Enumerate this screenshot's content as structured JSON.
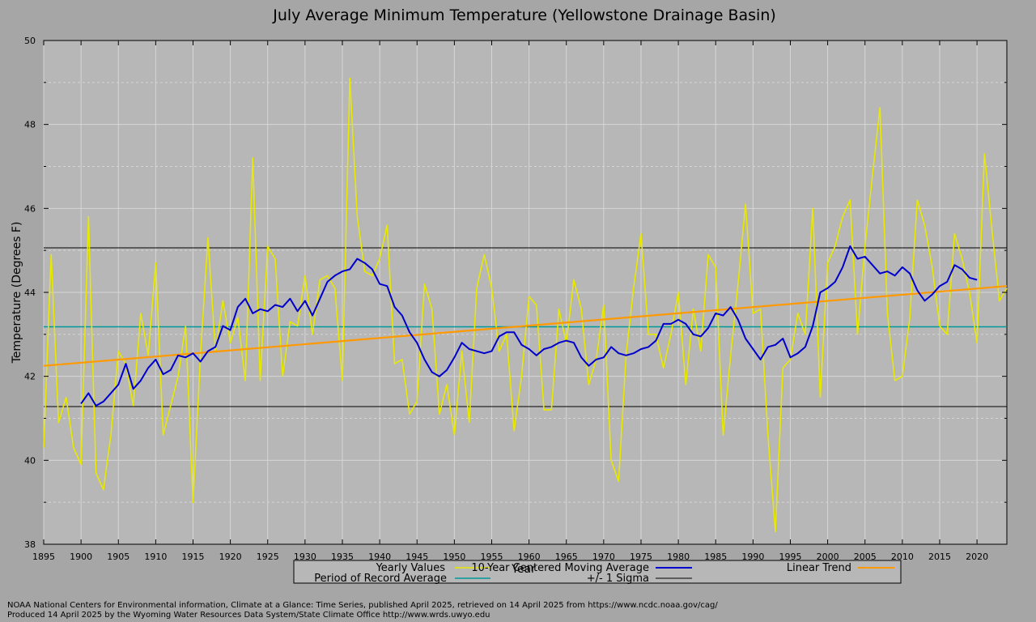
{
  "chart_data": {
    "type": "line",
    "title": "July Average Minimum Temperature (Yellowstone Drainage Basin)",
    "xlabel": "Year",
    "ylabel": "Temperature (Degrees F)",
    "xlim": [
      1895,
      2024
    ],
    "ylim": [
      38,
      50
    ],
    "xticks": [
      1895,
      1900,
      1905,
      1910,
      1915,
      1920,
      1925,
      1930,
      1935,
      1940,
      1945,
      1950,
      1955,
      1960,
      1965,
      1970,
      1975,
      1980,
      1985,
      1990,
      1995,
      2000,
      2005,
      2010,
      2015,
      2020
    ],
    "yticks": [
      38,
      40,
      42,
      44,
      46,
      48,
      50
    ],
    "grid": true,
    "legend_position": "bottom",
    "series": [
      {
        "name": "Yearly Values",
        "color": "#e8e800",
        "x": [
          1895,
          1896,
          1897,
          1898,
          1899,
          1900,
          1901,
          1902,
          1903,
          1904,
          1905,
          1906,
          1907,
          1908,
          1909,
          1910,
          1911,
          1912,
          1913,
          1914,
          1915,
          1916,
          1917,
          1918,
          1919,
          1920,
          1921,
          1922,
          1923,
          1924,
          1925,
          1926,
          1927,
          1928,
          1929,
          1930,
          1931,
          1932,
          1933,
          1934,
          1935,
          1936,
          1937,
          1938,
          1939,
          1940,
          1941,
          1942,
          1943,
          1944,
          1945,
          1946,
          1947,
          1948,
          1949,
          1950,
          1951,
          1952,
          1953,
          1954,
          1955,
          1956,
          1957,
          1958,
          1959,
          1960,
          1961,
          1962,
          1963,
          1964,
          1965,
          1966,
          1967,
          1968,
          1969,
          1970,
          1971,
          1972,
          1973,
          1974,
          1975,
          1976,
          1977,
          1978,
          1979,
          1980,
          1981,
          1982,
          1983,
          1984,
          1985,
          1986,
          1987,
          1988,
          1989,
          1990,
          1991,
          1992,
          1993,
          1994,
          1995,
          1996,
          1997,
          1998,
          1999,
          2000,
          2001,
          2002,
          2003,
          2004,
          2005,
          2006,
          2007,
          2008,
          2009,
          2010,
          2011,
          2012,
          2013,
          2014,
          2015,
          2016,
          2017,
          2018,
          2019,
          2020,
          2021,
          2022,
          2023,
          2024
        ],
        "values": [
          40.3,
          44.9,
          40.9,
          41.5,
          40.3,
          39.9,
          45.8,
          39.7,
          39.3,
          40.6,
          42.6,
          42.3,
          41.3,
          43.5,
          42.5,
          44.7,
          40.6,
          41.3,
          42.0,
          43.2,
          39.0,
          42.5,
          45.3,
          42.6,
          43.8,
          42.8,
          43.4,
          41.9,
          47.2,
          41.9,
          45.1,
          44.8,
          42.0,
          43.3,
          43.2,
          44.4,
          43.0,
          44.3,
          44.4,
          44.1,
          41.9,
          49.1,
          45.8,
          44.5,
          44.4,
          44.8,
          45.6,
          42.3,
          42.4,
          41.1,
          41.4,
          44.2,
          43.6,
          41.1,
          41.8,
          40.6,
          42.6,
          40.9,
          44.1,
          44.9,
          44.1,
          42.6,
          43.0,
          40.7,
          42.0,
          43.9,
          43.7,
          41.2,
          41.2,
          43.6,
          42.8,
          44.3,
          43.6,
          41.8,
          42.4,
          43.7,
          40.0,
          39.5,
          42.5,
          44.1,
          45.4,
          43.0,
          43.0,
          42.2,
          43.0,
          44.0,
          41.8,
          43.6,
          42.6,
          44.9,
          44.6,
          40.6,
          42.5,
          44.2,
          46.1,
          43.5,
          43.6,
          40.6,
          38.3,
          42.2,
          42.4,
          43.5,
          43.0,
          46.0,
          41.5,
          44.7,
          45.1,
          45.8,
          46.2,
          43.0,
          45.1,
          46.8,
          48.4,
          43.5,
          41.9,
          42.0,
          43.4,
          46.2,
          45.6,
          44.6,
          43.2,
          43.0,
          45.4,
          44.8,
          44.0,
          42.8,
          47.3,
          45.5,
          43.8,
          44.1
        ]
      },
      {
        "name": "10-Year Centered Moving Average",
        "color": "#0000cc",
        "x": [
          1900,
          1901,
          1902,
          1903,
          1904,
          1905,
          1906,
          1907,
          1908,
          1909,
          1910,
          1911,
          1912,
          1913,
          1914,
          1915,
          1916,
          1917,
          1918,
          1919,
          1920,
          1921,
          1922,
          1923,
          1924,
          1925,
          1926,
          1927,
          1928,
          1929,
          1930,
          1931,
          1932,
          1933,
          1934,
          1935,
          1936,
          1937,
          1938,
          1939,
          1940,
          1941,
          1942,
          1943,
          1944,
          1945,
          1946,
          1947,
          1948,
          1949,
          1950,
          1951,
          1952,
          1953,
          1954,
          1955,
          1956,
          1957,
          1958,
          1959,
          1960,
          1961,
          1962,
          1963,
          1964,
          1965,
          1966,
          1967,
          1968,
          1969,
          1970,
          1971,
          1972,
          1973,
          1974,
          1975,
          1976,
          1977,
          1978,
          1979,
          1980,
          1981,
          1982,
          1983,
          1984,
          1985,
          1986,
          1987,
          1988,
          1989,
          1990,
          1991,
          1992,
          1993,
          1994,
          1995,
          1996,
          1997,
          1998,
          1999,
          2000,
          2001,
          2002,
          2003,
          2004,
          2005,
          2006,
          2007,
          2008,
          2009,
          2010,
          2011,
          2012,
          2013,
          2014,
          2015,
          2016,
          2017,
          2018,
          2019,
          2020
        ],
        "values": [
          41.35,
          41.6,
          41.3,
          41.4,
          41.6,
          41.8,
          42.3,
          41.7,
          41.9,
          42.2,
          42.4,
          42.05,
          42.15,
          42.5,
          42.45,
          42.55,
          42.35,
          42.6,
          42.7,
          43.2,
          43.1,
          43.65,
          43.85,
          43.5,
          43.6,
          43.55,
          43.7,
          43.65,
          43.85,
          43.55,
          43.8,
          43.45,
          43.85,
          44.25,
          44.4,
          44.5,
          44.55,
          44.8,
          44.7,
          44.55,
          44.2,
          44.15,
          43.65,
          43.45,
          43.05,
          42.8,
          42.4,
          42.1,
          42.0,
          42.15,
          42.45,
          42.8,
          42.65,
          42.6,
          42.55,
          42.6,
          42.95,
          43.05,
          43.05,
          42.75,
          42.65,
          42.5,
          42.65,
          42.7,
          42.8,
          42.85,
          42.8,
          42.45,
          42.25,
          42.4,
          42.45,
          42.7,
          42.55,
          42.5,
          42.55,
          42.65,
          42.7,
          42.85,
          43.25,
          43.25,
          43.35,
          43.25,
          43.0,
          42.95,
          43.15,
          43.5,
          43.45,
          43.65,
          43.35,
          42.9,
          42.65,
          42.4,
          42.7,
          42.75,
          42.9,
          42.45,
          42.55,
          42.7,
          43.2,
          44.0,
          44.1,
          44.25,
          44.6,
          45.1,
          44.8,
          44.85,
          44.65,
          44.45,
          44.5,
          44.4,
          44.6,
          44.45,
          44.05,
          43.8,
          43.95,
          44.15,
          44.25,
          44.65,
          44.55,
          44.35,
          44.3
        ]
      },
      {
        "name": "Linear Trend",
        "color": "#ff9900",
        "x": [
          1895,
          2024
        ],
        "values": [
          42.25,
          44.15
        ]
      },
      {
        "name": "Period of Record Average",
        "color": "#009999",
        "x": [
          1895,
          2024
        ],
        "values": [
          43.18,
          43.18
        ]
      },
      {
        "name": "+/- 1 Sigma",
        "color": "#000000",
        "bands": [
          41.28,
          45.06
        ]
      }
    ]
  },
  "footer": {
    "line1": "NOAA National Centers for Environmental information, Climate at a Glance: Time Series, published April 2025, retrieved on 14 April 2025 from https://www.ncdc.noaa.gov/cag/",
    "line2": "Produced 14 April 2025 by the Wyoming Water Resources Data System/State Climate Office http://www.wrds.uwyo.edu"
  }
}
